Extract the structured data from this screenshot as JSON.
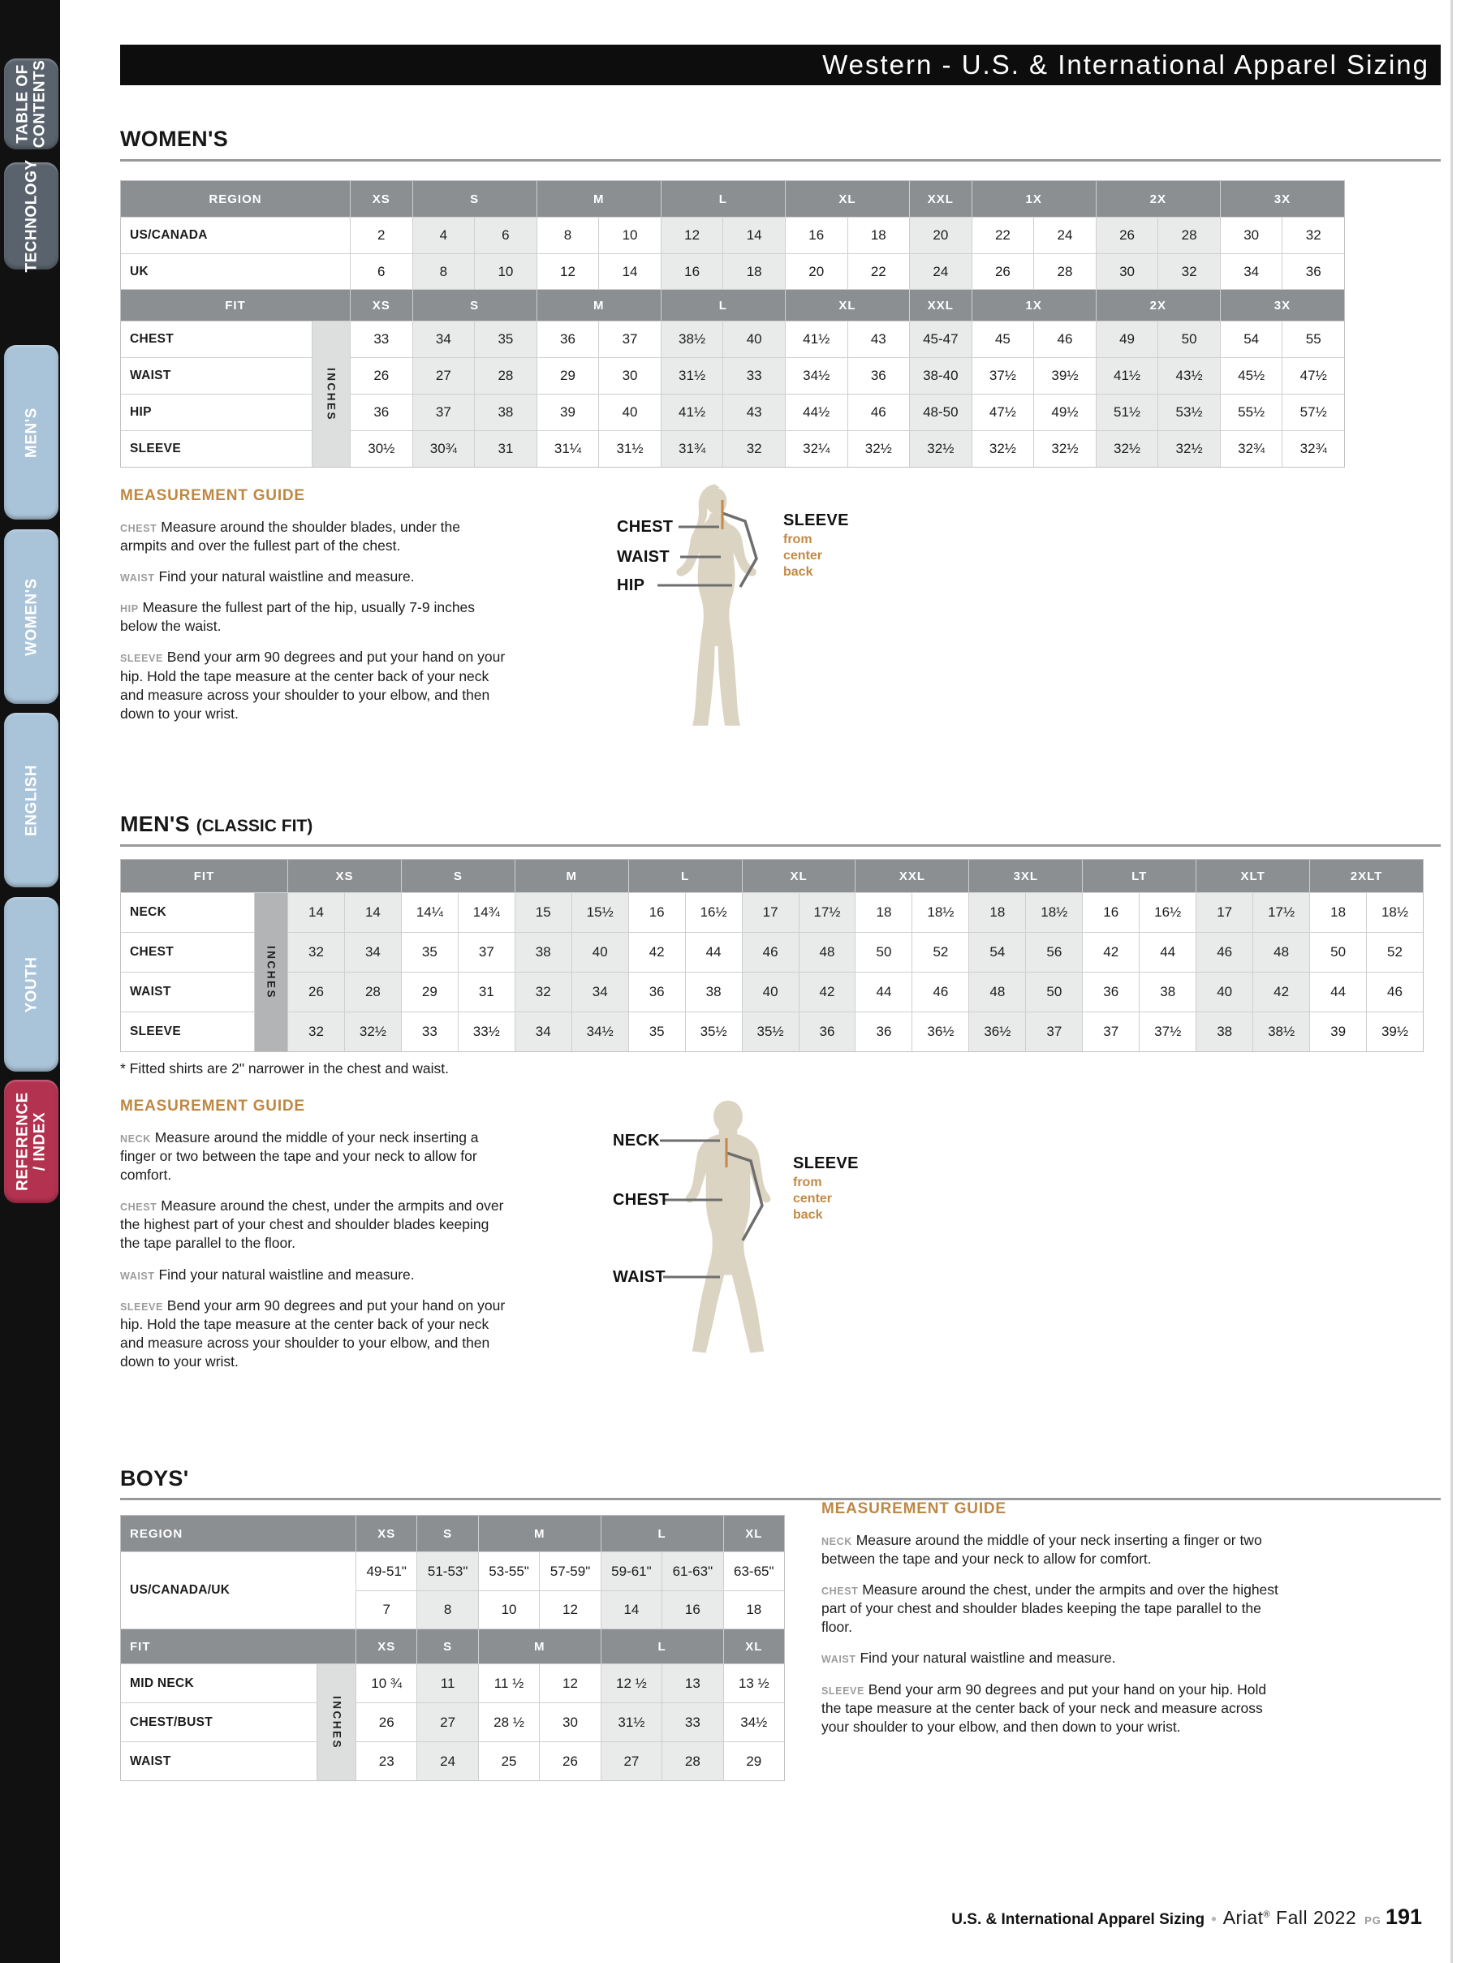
{
  "header": {
    "title": "Western - U.S. & International Apparel Sizing"
  },
  "sidebar": {
    "tabs": [
      {
        "label": "TABLE OF CONTENTS",
        "color": "dark",
        "wrap": true
      },
      {
        "label": "TECHNOLOGY",
        "color": "dark",
        "wrap": false
      },
      {
        "label": "MEN'S",
        "color": "blue",
        "wrap": false
      },
      {
        "label": "WOMEN'S",
        "color": "blue",
        "wrap": false
      },
      {
        "label": "ENGLISH",
        "color": "blue",
        "wrap": false
      },
      {
        "label": "YOUTH",
        "color": "blue",
        "wrap": false
      },
      {
        "label": "REFERENCE / INDEX",
        "color": "red",
        "wrap": true
      }
    ]
  },
  "sections": {
    "womens": {
      "heading": "WOMEN'S",
      "table": {
        "region_label": "REGION",
        "fit_label": "FIT",
        "inches_label": "INCHES",
        "groups": [
          {
            "label": "XS",
            "cols": 1
          },
          {
            "label": "S",
            "cols": 2
          },
          {
            "label": "M",
            "cols": 2
          },
          {
            "label": "L",
            "cols": 2
          },
          {
            "label": "XL",
            "cols": 2
          },
          {
            "label": "XXL",
            "cols": 1
          },
          {
            "label": "1X",
            "cols": 2
          },
          {
            "label": "2X",
            "cols": 2
          },
          {
            "label": "3X",
            "cols": 2
          }
        ],
        "shaded_groups": [
          1,
          3,
          5,
          7
        ],
        "region_rows": [
          {
            "label": "US/CANADA",
            "values": [
              "2",
              "4",
              "6",
              "8",
              "10",
              "12",
              "14",
              "16",
              "18",
              "20",
              "22",
              "24",
              "26",
              "28",
              "30",
              "32"
            ]
          },
          {
            "label": "UK",
            "values": [
              "6",
              "8",
              "10",
              "12",
              "14",
              "16",
              "18",
              "20",
              "22",
              "24",
              "26",
              "28",
              "30",
              "32",
              "34",
              "36"
            ]
          }
        ],
        "fit_rows": [
          {
            "label": "CHEST",
            "values": [
              "33",
              "34",
              "35",
              "36",
              "37",
              "38½",
              "40",
              "41½",
              "43",
              "45-47",
              "45",
              "46",
              "49",
              "50",
              "54",
              "55"
            ]
          },
          {
            "label": "WAIST",
            "values": [
              "26",
              "27",
              "28",
              "29",
              "30",
              "31½",
              "33",
              "34½",
              "36",
              "38-40",
              "37½",
              "39½",
              "41½",
              "43½",
              "45½",
              "47½"
            ]
          },
          {
            "label": "HIP",
            "values": [
              "36",
              "37",
              "38",
              "39",
              "40",
              "41½",
              "43",
              "44½",
              "46",
              "48-50",
              "47½",
              "49½",
              "51½",
              "53½",
              "55½",
              "57½"
            ]
          },
          {
            "label": "SLEEVE",
            "values": [
              "30½",
              "30¾",
              "31",
              "31¼",
              "31½",
              "31¾",
              "32",
              "32¼",
              "32½",
              "32½",
              "32½",
              "32½",
              "32½",
              "32½",
              "32¾",
              "32¾"
            ]
          }
        ]
      },
      "guide": {
        "heading": "MEASUREMENT GUIDE",
        "items": [
          {
            "label": "CHEST",
            "text": "Measure around the shoulder blades, under the armpits and over the fullest part of the chest."
          },
          {
            "label": "WAIST",
            "text": "Find your natural waistline and measure."
          },
          {
            "label": "HIP",
            "text": "Measure the fullest part of the hip, usually 7-9 inches below the waist."
          },
          {
            "label": "SLEEVE",
            "text": "Bend your arm 90 degrees and put your hand on your hip. Hold the tape measure at the center back of your neck and measure across your shoulder to your elbow, and then down to your wrist."
          }
        ]
      },
      "figure": {
        "labels": [
          "CHEST",
          "WAIST",
          "HIP"
        ],
        "sleeve_label": "SLEEVE",
        "sleeve_note": "from\ncenter\nback"
      }
    },
    "mens": {
      "heading": "MEN'S",
      "heading_suffix": "(CLASSIC FIT)",
      "note": "* Fitted shirts are 2\" narrower in the chest and waist.",
      "table": {
        "fit_label": "FIT",
        "inches_label": "INCHES",
        "groups": [
          {
            "label": "XS",
            "cols": 2
          },
          {
            "label": "S",
            "cols": 2
          },
          {
            "label": "M",
            "cols": 2
          },
          {
            "label": "L",
            "cols": 2
          },
          {
            "label": "XL",
            "cols": 2
          },
          {
            "label": "XXL",
            "cols": 2
          },
          {
            "label": "3XL",
            "cols": 2
          },
          {
            "label": "LT",
            "cols": 2
          },
          {
            "label": "XLT",
            "cols": 2
          },
          {
            "label": "2XLT",
            "cols": 2
          }
        ],
        "shaded_groups": [
          0,
          2,
          4,
          6,
          8
        ],
        "fit_rows": [
          {
            "label": "NECK",
            "values": [
              "14",
              "14",
              "14¼",
              "14¾",
              "15",
              "15½",
              "16",
              "16½",
              "17",
              "17½",
              "18",
              "18½",
              "18",
              "18½",
              "16",
              "16½",
              "17",
              "17½",
              "18",
              "18½"
            ]
          },
          {
            "label": "CHEST",
            "values": [
              "32",
              "34",
              "35",
              "37",
              "38",
              "40",
              "42",
              "44",
              "46",
              "48",
              "50",
              "52",
              "54",
              "56",
              "42",
              "44",
              "46",
              "48",
              "50",
              "52"
            ]
          },
          {
            "label": "WAIST",
            "values": [
              "26",
              "28",
              "29",
              "31",
              "32",
              "34",
              "36",
              "38",
              "40",
              "42",
              "44",
              "46",
              "48",
              "50",
              "36",
              "38",
              "40",
              "42",
              "44",
              "46"
            ]
          },
          {
            "label": "SLEEVE",
            "values": [
              "32",
              "32½",
              "33",
              "33½",
              "34",
              "34½",
              "35",
              "35½",
              "35½",
              "36",
              "36",
              "36½",
              "36½",
              "37",
              "37",
              "37½",
              "38",
              "38½",
              "39",
              "39½"
            ]
          }
        ]
      },
      "guide": {
        "heading": "MEASUREMENT GUIDE",
        "items": [
          {
            "label": "NECK",
            "text": "Measure around the middle of your neck inserting a finger or two between the tape and your neck to allow for comfort."
          },
          {
            "label": "CHEST",
            "text": "Measure around the chest, under the armpits and over the highest part of your chest and shoulder blades keeping the tape parallel to the floor."
          },
          {
            "label": "WAIST",
            "text": "Find your natural waistline and measure."
          },
          {
            "label": "SLEEVE",
            "text": "Bend your arm 90 degrees and put your hand on your hip. Hold the tape measure at the center back of your neck and measure across your shoulder to your elbow, and then down to your wrist."
          }
        ]
      },
      "figure": {
        "labels": [
          "NECK",
          "CHEST",
          "WAIST"
        ],
        "sleeve_label": "SLEEVE",
        "sleeve_note": "from\ncenter\nback"
      }
    },
    "boys": {
      "heading": "BOYS'",
      "table": {
        "region_label": "REGION",
        "fit_label": "FIT",
        "inches_label": "INCHES",
        "region_row_label": "US/CANADA/UK",
        "groups": [
          {
            "label": "XS",
            "cols": 1
          },
          {
            "label": "S",
            "cols": 1
          },
          {
            "label": "M",
            "cols": 2
          },
          {
            "label": "L",
            "cols": 2
          },
          {
            "label": "XL",
            "cols": 1
          }
        ],
        "shaded_groups": [
          1,
          3
        ],
        "region_rows": [
          [
            "49-51\"",
            "51-53\"",
            "53-55\"",
            "57-59\"",
            "59-61\"",
            "61-63\"",
            "63-65\""
          ],
          [
            "7",
            "8",
            "10",
            "12",
            "14",
            "16",
            "18"
          ]
        ],
        "fit_rows": [
          {
            "label": "MID NECK",
            "values": [
              "10 ¾",
              "11",
              "11 ½",
              "12",
              "12 ½",
              "13",
              "13 ½"
            ]
          },
          {
            "label": "CHEST/BUST",
            "values": [
              "26",
              "27",
              "28 ½",
              "30",
              "31½",
              "33",
              "34½"
            ]
          },
          {
            "label": "WAIST",
            "values": [
              "23",
              "24",
              "25",
              "26",
              "27",
              "28",
              "29"
            ]
          }
        ]
      },
      "guide": {
        "heading": "MEASUREMENT GUIDE",
        "items": [
          {
            "label": "NECK",
            "text": "Measure around the middle of your neck inserting a finger or two between the tape and your neck to allow for comfort."
          },
          {
            "label": "CHEST",
            "text": "Measure around the chest, under the armpits and over the highest part of your chest and shoulder blades keeping the tape parallel to the floor."
          },
          {
            "label": "WAIST",
            "text": "Find your natural waistline and measure."
          },
          {
            "label": "SLEEVE",
            "text": "Bend your arm 90 degrees and put your hand on your hip. Hold the tape measure at the center back of your neck and measure across your shoulder to your elbow, and then down to your wrist."
          }
        ]
      }
    }
  },
  "footer": {
    "product_line": "U.S. & International Apparel Sizing",
    "separator": "•",
    "brand": "Ariat",
    "trademark": "®",
    "season": "Fall 2022",
    "page_label": "PG",
    "page_number": "191"
  },
  "colors": {
    "accent_tan": "#bd8843",
    "table_header_gray": "#8b8f92",
    "shade_gray": "#e9eaea",
    "tab_blue": "#a9c3d9",
    "tab_red": "#b23250",
    "silhouette_beige": "#dcd4c2"
  }
}
